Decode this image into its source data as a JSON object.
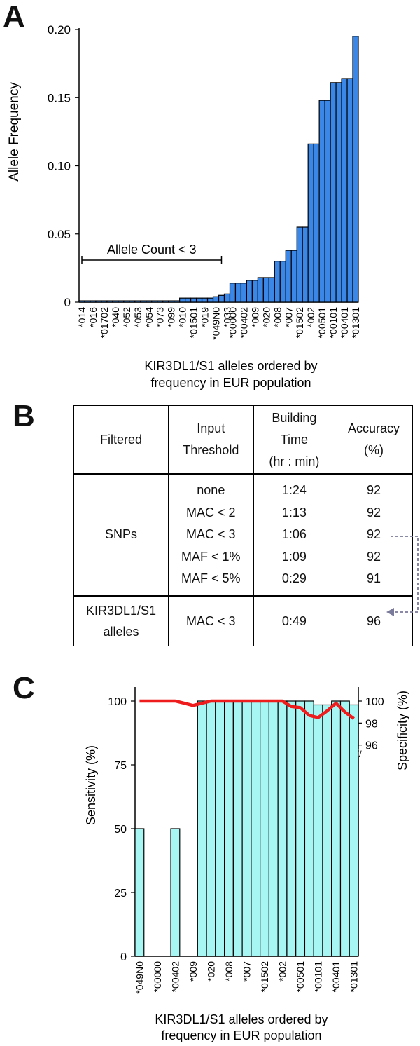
{
  "panels": {
    "a": "A",
    "b": "B",
    "c": "C"
  },
  "colors": {
    "bar_a": "#3a87e8",
    "bar_c": "#a8f6f4",
    "line_c": "#ee1c1c",
    "arrow": "#7a7a9a",
    "axis": "#000000"
  },
  "chart_data": [
    {
      "type": "bar",
      "panel": "A",
      "title": "",
      "ylabel": "Allele Frequency",
      "xlabel_lines": [
        "KIR3DL1/S1 alleles ordered by",
        "frequency in EUR population"
      ],
      "ylim": [
        0,
        0.2
      ],
      "yticks": [
        0,
        0.05,
        0.1,
        0.15,
        0.2
      ],
      "ytick_labels": [
        "0",
        "0.05",
        "0.10",
        "0.15",
        "0.20"
      ],
      "categories": [
        "*014",
        "",
        "*016",
        "",
        "*01702",
        "",
        "*040",
        "",
        "*052",
        "",
        "*053",
        "",
        "*054",
        "",
        "*073",
        "",
        "*099",
        "",
        "*010",
        "",
        "*01501",
        "",
        "*019",
        "",
        "*049N0",
        "",
        "*033",
        "*00000",
        "",
        "*00402",
        "",
        "*009",
        "",
        "*020",
        "",
        "*008",
        "",
        "*007",
        "",
        "*01502",
        "",
        "*002",
        "",
        "*00501",
        "",
        "*00101",
        "",
        "*00401",
        "",
        "*01301"
      ],
      "values": [
        0.001,
        0.001,
        0.001,
        0.001,
        0.001,
        0.001,
        0.001,
        0.001,
        0.001,
        0.001,
        0.001,
        0.001,
        0.001,
        0.001,
        0.001,
        0.001,
        0.001,
        0.001,
        0.003,
        0.003,
        0.003,
        0.003,
        0.003,
        0.003,
        0.004,
        0.005,
        0.006,
        0.014,
        0.014,
        0.014,
        0.016,
        0.016,
        0.018,
        0.018,
        0.018,
        0.03,
        0.03,
        0.038,
        0.038,
        0.055,
        0.055,
        0.116,
        0.116,
        0.148,
        0.148,
        0.161,
        0.161,
        0.164,
        0.164,
        0.195
      ],
      "annotation": {
        "text": "Allele Count <  3",
        "from_index": 0,
        "to_index": 25
      }
    },
    {
      "type": "bar+line",
      "panel": "C",
      "title": "",
      "ylabel": "Sensitivity (%)",
      "y2label": "Specificity (%)",
      "xlabel_lines": [
        "KIR3DL1/S1 alleles ordered by",
        "frequency in EUR population"
      ],
      "ylim": [
        0,
        100
      ],
      "yticks": [
        0,
        25,
        50,
        75,
        100
      ],
      "y2lim": [
        94,
        100
      ],
      "y2ticks": [
        96,
        98,
        100
      ],
      "y2_break_symbol": "//",
      "categories": [
        "*049N0",
        "",
        "*00000",
        "",
        "*00402",
        "",
        "*009",
        "",
        "*020",
        "",
        "*008",
        "",
        "*007",
        "",
        "*01502",
        "",
        "*002",
        "",
        "*00501",
        "",
        "*00101",
        "",
        "*00401",
        "",
        "*01301"
      ],
      "series": [
        {
          "name": "Sensitivity",
          "kind": "bar",
          "values": [
            50,
            null,
            null,
            null,
            50,
            null,
            null,
            100,
            100,
            100,
            100,
            100,
            100,
            100,
            100,
            100,
            100,
            100,
            100,
            100,
            98.5,
            98.5,
            100,
            100,
            98.5
          ]
        },
        {
          "name": "Specificity",
          "kind": "line",
          "values": [
            100,
            100,
            100,
            100,
            100,
            99.8,
            99.6,
            99.8,
            100,
            100,
            100,
            100,
            100,
            100,
            100,
            100,
            100,
            99.5,
            99.4,
            98.7,
            98.5,
            99.1,
            99.8,
            99.0,
            98.4
          ]
        }
      ]
    }
  ],
  "table_b": {
    "headers": {
      "filtered": "Filtered",
      "input_threshold": [
        "Input",
        "Threshold"
      ],
      "building_time": [
        "Building",
        "Time",
        "(hr : min)"
      ],
      "accuracy": [
        "Accuracy",
        "(%)"
      ]
    },
    "groups": [
      {
        "filtered": "SNPs",
        "thresholds": [
          "none",
          "MAC < 2",
          "MAC < 3",
          "MAF < 1%",
          "MAF < 5%"
        ],
        "times": [
          "1:24",
          "1:13",
          "1:06",
          "1:09",
          "0:29"
        ],
        "accuracy": [
          "92",
          "92",
          "92",
          "92",
          "91"
        ]
      },
      {
        "filtered": "KIR3DL1/S1 alleles",
        "thresholds": [
          "MAC < 3"
        ],
        "times": [
          "0:49"
        ],
        "accuracy": [
          "96"
        ]
      }
    ]
  }
}
